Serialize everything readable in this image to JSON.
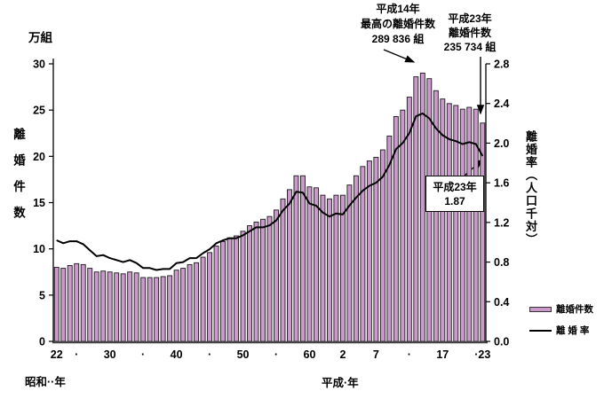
{
  "chart_data": {
    "type": "bar",
    "combo": "bar+line",
    "left_axis": {
      "unit": "万組",
      "label": "離婚件数",
      "range": [
        0,
        30
      ],
      "ticks": [
        0,
        5,
        10,
        15,
        20,
        25,
        30
      ]
    },
    "right_axis": {
      "label": "離婚率（人口千対）",
      "range": [
        0,
        2.8
      ],
      "ticks": [
        "0.0",
        "0.4",
        "0.8",
        "1.2",
        "1.6",
        "2.0",
        "2.4",
        "2.8"
      ]
    },
    "x_axis": {
      "tick_labels": [
        {
          "t": "22",
          "i": 0
        },
        {
          "t": "·",
          "i": 3
        },
        {
          "t": "30",
          "i": 8
        },
        {
          "t": "·",
          "i": 13
        },
        {
          "t": "40",
          "i": 18
        },
        {
          "t": "·",
          "i": 23
        },
        {
          "t": "50",
          "i": 28
        },
        {
          "t": "·",
          "i": 33
        },
        {
          "t": "60",
          "i": 38
        },
        {
          "t": "2",
          "i": 43
        },
        {
          "t": "7",
          "i": 48
        },
        {
          "t": "·",
          "i": 53
        },
        {
          "t": "17",
          "i": 58
        },
        {
          "t": "·23",
          "i": 64
        }
      ],
      "era_labels": {
        "showa": "昭和··年",
        "heisei": "平成·年"
      }
    },
    "series": [
      {
        "name": "離婚件数",
        "type": "bar",
        "color": "#cc99cc",
        "stroke": "#1a1a1a",
        "axis": "left",
        "values": [
          8.0,
          7.9,
          8.2,
          8.4,
          8.3,
          7.9,
          7.5,
          7.6,
          7.5,
          7.4,
          7.3,
          7.5,
          7.4,
          6.9,
          6.9,
          6.9,
          7.0,
          7.1,
          7.7,
          7.9,
          8.3,
          8.5,
          9.1,
          9.6,
          10.3,
          10.8,
          11.2,
          11.4,
          11.9,
          12.5,
          12.9,
          13.2,
          13.5,
          14.2,
          15.4,
          16.4,
          17.9,
          17.9,
          16.7,
          16.6,
          15.8,
          15.4,
          15.8,
          15.8,
          16.9,
          17.9,
          18.9,
          19.5,
          19.9,
          20.7,
          22.2,
          24.3,
          25.0,
          26.4,
          28.6,
          29.0,
          28.4,
          27.1,
          26.2,
          25.7,
          25.5,
          25.1,
          25.3,
          25.1,
          23.6
        ]
      },
      {
        "name": "離 婚 率",
        "type": "line",
        "color": "#000000",
        "axis": "right",
        "values": [
          1.02,
          0.99,
          1.01,
          1.01,
          0.98,
          0.92,
          0.86,
          0.87,
          0.84,
          0.82,
          0.8,
          0.82,
          0.79,
          0.74,
          0.74,
          0.72,
          0.73,
          0.73,
          0.79,
          0.8,
          0.84,
          0.84,
          0.89,
          0.93,
          0.99,
          1.02,
          1.04,
          1.04,
          1.07,
          1.11,
          1.15,
          1.15,
          1.17,
          1.22,
          1.32,
          1.39,
          1.51,
          1.5,
          1.39,
          1.37,
          1.3,
          1.26,
          1.29,
          1.28,
          1.37,
          1.45,
          1.52,
          1.57,
          1.6,
          1.66,
          1.78,
          1.94,
          2.0,
          2.1,
          2.27,
          2.3,
          2.25,
          2.15,
          2.08,
          2.04,
          2.02,
          1.99,
          2.01,
          1.99,
          1.87
        ]
      }
    ],
    "legend_position": "right-bottom",
    "grid": false
  },
  "annotations": {
    "peak": {
      "line1": "平成14年",
      "line2": "最高の離婚件数",
      "line3": "289 836 組"
    },
    "latest_count": {
      "line1": "平成23年",
      "line2": "離婚件数",
      "line3": "235 734 組"
    },
    "latest_rate": {
      "line1": "平成23年",
      "line2": "1.87"
    }
  },
  "legend": {
    "items": [
      {
        "label": "離婚件数",
        "swatch": "bar",
        "color": "#cc99cc"
      },
      {
        "label": "離 婚 率",
        "swatch": "line",
        "color": "#000000"
      }
    ]
  },
  "colors": {
    "bar_fill": "#cc99cc",
    "bar_stroke": "#1a1a1a",
    "line": "#000000",
    "axis": "#000000"
  }
}
